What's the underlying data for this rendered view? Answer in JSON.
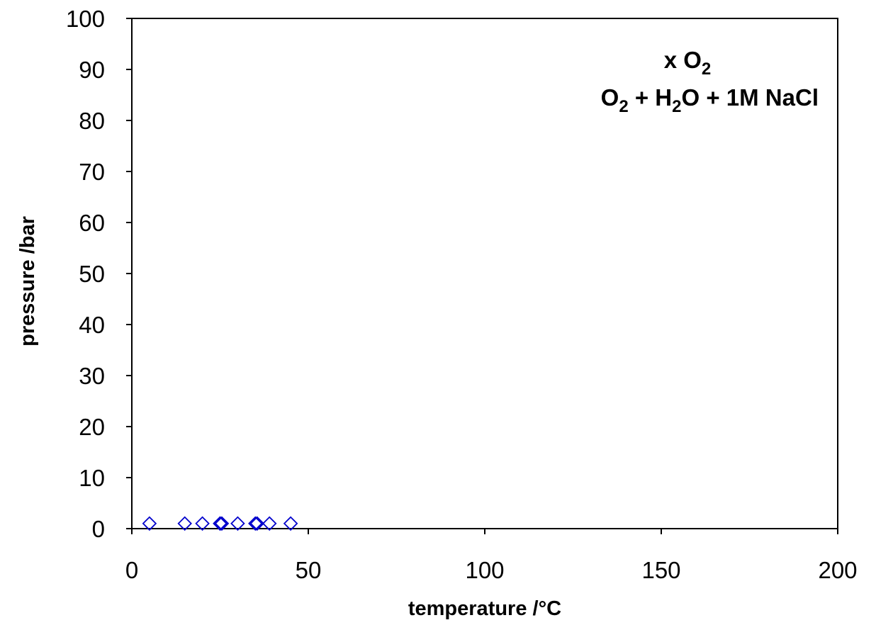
{
  "chart_data": {
    "type": "scatter",
    "xlabel": "temperature /°C",
    "ylabel": "pressure /bar",
    "xlim": [
      0,
      200
    ],
    "ylim": [
      0,
      100
    ],
    "xticks": [
      0,
      50,
      100,
      150,
      200
    ],
    "yticks": [
      0,
      10,
      20,
      30,
      40,
      50,
      60,
      70,
      80,
      90,
      100
    ],
    "grid": false,
    "annotation": {
      "line1": "x O2",
      "line2": "O2 + H2O + 1M NaCl"
    },
    "series": [
      {
        "marker": "open-diamond",
        "color": "#0000cc",
        "x": [
          5,
          15,
          20,
          25,
          25,
          25.5,
          30,
          35,
          35.5,
          39,
          45
        ],
        "y": [
          1,
          1,
          1,
          1,
          1,
          1,
          1,
          1,
          1,
          1,
          1
        ]
      }
    ]
  }
}
